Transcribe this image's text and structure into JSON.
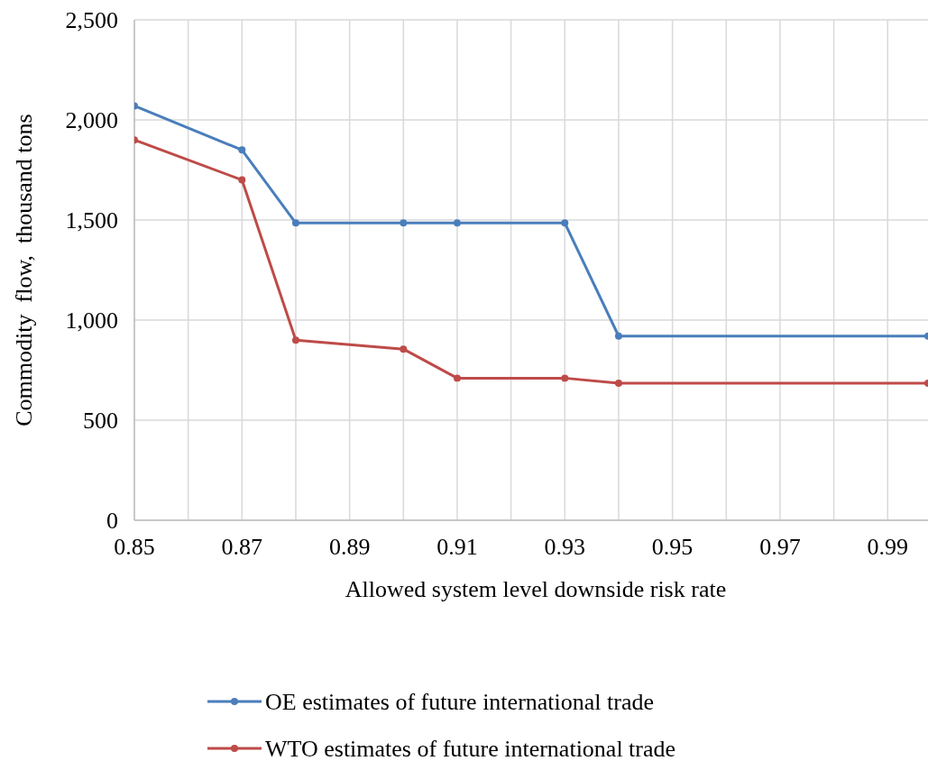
{
  "chart_data": {
    "type": "line",
    "xlabel": "Allowed system level downside risk rate",
    "ylabel": "Commodity  flow,  thousand tons",
    "xlim": [
      0.85,
      0.9975
    ],
    "xticks": [
      0.85,
      {
        "value": 0.86,
        "label": null
      },
      0.87,
      {
        "value": 0.88,
        "label": null
      },
      0.89,
      {
        "value": 0.9,
        "label": null
      },
      0.91,
      {
        "value": 0.92,
        "label": null
      },
      0.93,
      {
        "value": 0.94,
        "label": null
      },
      0.95,
      {
        "value": 0.96,
        "label": null
      },
      0.97,
      {
        "value": 0.98,
        "label": null
      },
      0.99
    ],
    "ylim": [
      0,
      2500
    ],
    "yticks": [
      {
        "value": 0,
        "label": "0"
      },
      {
        "value": 500,
        "label": "500"
      },
      {
        "value": 1000,
        "label": "1,000"
      },
      {
        "value": 1500,
        "label": "1,500"
      },
      {
        "value": 2000,
        "label": "2,000"
      },
      {
        "value": 2500,
        "label": "2,500"
      }
    ],
    "grid": true,
    "legend": "bottom",
    "marker": "circle",
    "line_style": "solid",
    "series": [
      {
        "name": "OE estimates of future international trade",
        "color": "#4a7ebb",
        "x": [
          0.85,
          0.87,
          0.88,
          0.9,
          0.91,
          0.93,
          0.94,
          0.9975
        ],
        "values": [
          2070,
          1850,
          1485,
          1485,
          1485,
          1485,
          920,
          920
        ]
      },
      {
        "name": "WTO estimates of future international trade",
        "color": "#be4b48",
        "x": [
          0.85,
          0.87,
          0.88,
          0.9,
          0.91,
          0.93,
          0.94,
          0.9975
        ],
        "values": [
          1900,
          1700,
          900,
          855,
          710,
          710,
          685,
          685
        ]
      }
    ]
  }
}
